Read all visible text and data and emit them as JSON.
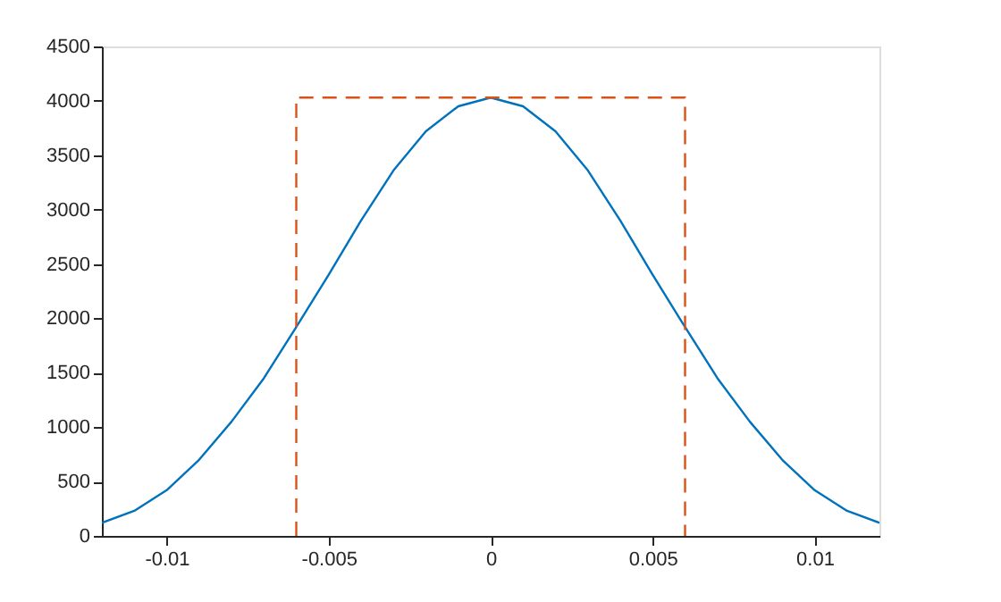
{
  "chart_data": {
    "type": "line",
    "series": [
      {
        "color": "#0072bd",
        "line_style": "solid",
        "x": [
          -0.012,
          -0.011,
          -0.01,
          -0.009,
          -0.008,
          -0.007,
          -0.006,
          -0.005,
          -0.004,
          -0.003,
          -0.002,
          -0.001,
          0,
          0.001,
          0.002,
          0.003,
          0.004,
          0.005,
          0.006,
          0.007,
          0.008,
          0.009,
          0.01,
          0.011,
          0.012
        ],
        "values": [
          120,
          230,
          420,
          700,
          1050,
          1450,
          1920,
          2400,
          2900,
          3360,
          3720,
          3950,
          4030,
          3950,
          3720,
          3360,
          2900,
          2400,
          1920,
          1450,
          1050,
          700,
          420,
          230,
          120
        ]
      },
      {
        "color": "#d95319",
        "line_style": "dashed",
        "x": [
          -0.006,
          -0.006,
          0.006,
          0.006
        ],
        "values": [
          0,
          4030,
          4030,
          0
        ]
      }
    ],
    "xlim": [
      -0.012,
      0.012
    ],
    "xticks": [
      -0.01,
      -0.005,
      0,
      0.005,
      0.01
    ],
    "ylim": [
      0,
      4500
    ],
    "yticks": [
      0,
      500,
      1000,
      1500,
      2000,
      2500,
      3000,
      3500,
      4000,
      4500
    ],
    "grid": false
  }
}
